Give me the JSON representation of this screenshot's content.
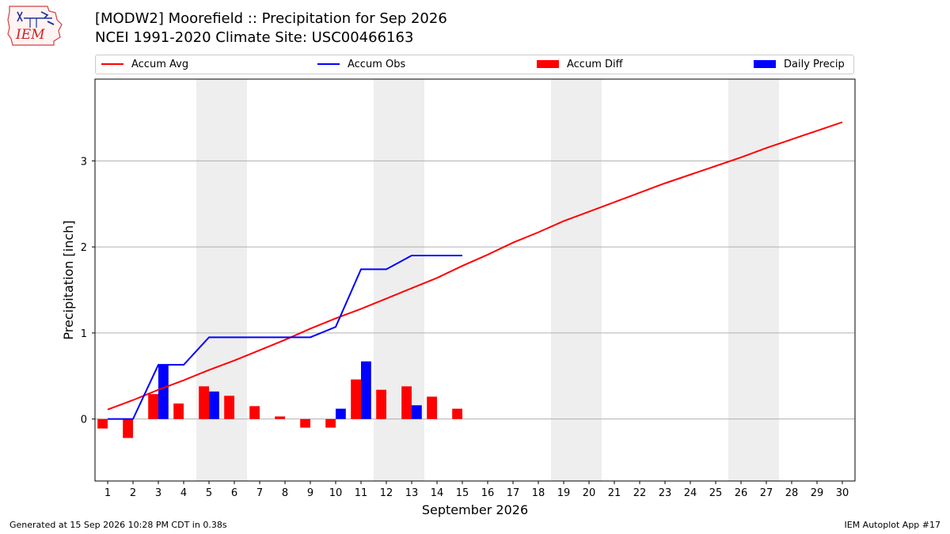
{
  "header": {
    "title_line1": "[MODW2] Moorefield :: Precipitation for Sep 2026",
    "title_line2": "NCEI 1991-2020 Climate Site: USC00466163"
  },
  "logo": {
    "text": "IEM"
  },
  "legend": {
    "accum_avg": "Accum Avg",
    "accum_obs": "Accum Obs",
    "accum_diff": "Accum Diff",
    "daily_precip": "Daily Precip"
  },
  "footer": {
    "left": "Generated at 15 Sep 2026 10:28 PM CDT in 0.38s",
    "right": "IEM Autoplot App #17"
  },
  "colors": {
    "accum_avg": "#ff0000",
    "accum_obs": "#0000ff",
    "accum_diff": "#ff0000",
    "daily_precip": "#0000ff",
    "weekend_shade": "#eeeeee",
    "grid": "#b0b0b0"
  },
  "chart_data": {
    "type": "bar",
    "xlabel": "September 2026",
    "ylabel": "Precipitation [inch]",
    "xlim": [
      0.5,
      30.5
    ],
    "ylim": [
      -0.72,
      3.95
    ],
    "yticks": [
      0,
      1,
      2,
      3
    ],
    "days": [
      1,
      2,
      3,
      4,
      5,
      6,
      7,
      8,
      9,
      10,
      11,
      12,
      13,
      14,
      15,
      16,
      17,
      18,
      19,
      20,
      21,
      22,
      23,
      24,
      25,
      26,
      27,
      28,
      29,
      30
    ],
    "weekend_spans": [
      [
        5,
        6
      ],
      [
        12,
        13
      ],
      [
        19,
        20
      ],
      [
        26,
        27
      ]
    ],
    "grid": "horizontal",
    "legend_position": "top",
    "series": [
      {
        "name": "Accum Avg",
        "kind": "line",
        "x": [
          1,
          2,
          3,
          4,
          5,
          6,
          7,
          8,
          9,
          10,
          11,
          12,
          13,
          14,
          15,
          16,
          17,
          18,
          19,
          20,
          21,
          22,
          23,
          24,
          25,
          26,
          27,
          28,
          29,
          30
        ],
        "values": [
          0.11,
          0.22,
          0.34,
          0.45,
          0.57,
          0.68,
          0.8,
          0.92,
          1.05,
          1.17,
          1.28,
          1.4,
          1.52,
          1.64,
          1.78,
          1.91,
          2.05,
          2.17,
          2.3,
          2.41,
          2.52,
          2.63,
          2.74,
          2.84,
          2.94,
          3.04,
          3.15,
          3.25,
          3.35,
          3.45
        ]
      },
      {
        "name": "Accum Obs",
        "kind": "line",
        "x": [
          1,
          2,
          3,
          4,
          5,
          6,
          7,
          8,
          9,
          10,
          11,
          12,
          13,
          14,
          15
        ],
        "values": [
          0.0,
          0.0,
          0.63,
          0.63,
          0.95,
          0.95,
          0.95,
          0.95,
          0.95,
          1.07,
          1.74,
          1.74,
          1.9,
          1.9,
          1.9
        ]
      },
      {
        "name": "Accum Diff",
        "kind": "bar",
        "x": [
          1,
          2,
          3,
          4,
          5,
          6,
          7,
          8,
          9,
          10,
          11,
          12,
          13,
          14,
          15
        ],
        "values": [
          -0.11,
          -0.22,
          0.29,
          0.18,
          0.38,
          0.27,
          0.15,
          0.03,
          -0.1,
          -0.1,
          0.46,
          0.34,
          0.38,
          0.26,
          0.12
        ]
      },
      {
        "name": "Daily Precip",
        "kind": "bar",
        "x": [
          1,
          2,
          3,
          4,
          5,
          6,
          7,
          8,
          9,
          10,
          11,
          12,
          13,
          14,
          15
        ],
        "values": [
          0,
          0,
          0.63,
          0,
          0.32,
          0,
          0,
          0,
          0,
          0.12,
          0.67,
          0,
          0.16,
          0,
          0
        ]
      }
    ]
  }
}
